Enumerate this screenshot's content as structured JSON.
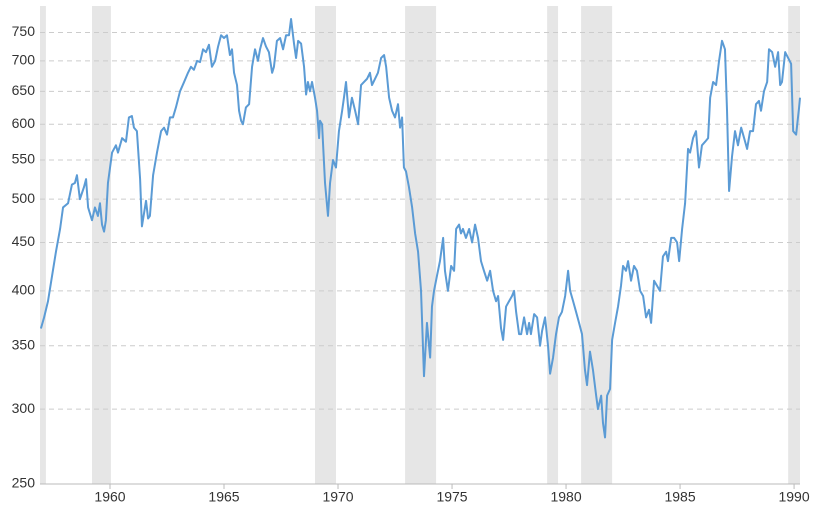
{
  "chart_data": {
    "type": "line",
    "x": [
      1956.97,
      1957.11,
      1957.28,
      1957.46,
      1957.63,
      1957.81,
      1957.94,
      1958.16,
      1958.33,
      1958.46,
      1958.55,
      1958.68,
      1958.86,
      1958.95,
      1959.04,
      1959.21,
      1959.34,
      1959.47,
      1959.56,
      1959.65,
      1959.74,
      1959.82,
      1959.91,
      1960.09,
      1960.26,
      1960.35,
      1960.53,
      1960.7,
      1960.83,
      1960.96,
      1961.05,
      1961.18,
      1961.32,
      1961.4,
      1961.58,
      1961.67,
      1961.75,
      1961.89,
      1962.06,
      1962.24,
      1962.37,
      1962.5,
      1962.63,
      1962.76,
      1962.89,
      1963.07,
      1963.25,
      1963.42,
      1963.55,
      1963.68,
      1963.82,
      1963.95,
      1964.08,
      1964.21,
      1964.34,
      1964.47,
      1964.61,
      1964.74,
      1964.87,
      1965.0,
      1965.13,
      1965.26,
      1965.35,
      1965.44,
      1965.57,
      1965.66,
      1965.75,
      1965.83,
      1965.96,
      1966.1,
      1966.23,
      1966.36,
      1966.49,
      1966.58,
      1966.71,
      1966.84,
      1966.97,
      1967.11,
      1967.19,
      1967.32,
      1967.46,
      1967.59,
      1967.72,
      1967.85,
      1967.94,
      1968.07,
      1968.16,
      1968.25,
      1968.38,
      1968.51,
      1968.6,
      1968.68,
      1968.77,
      1968.86,
      1968.99,
      1969.08,
      1969.17,
      1969.21,
      1969.3,
      1969.43,
      1969.56,
      1969.65,
      1969.78,
      1969.91,
      1970.04,
      1970.18,
      1970.26,
      1970.35,
      1970.48,
      1970.61,
      1970.75,
      1970.88,
      1971.01,
      1971.14,
      1971.27,
      1971.4,
      1971.49,
      1971.62,
      1971.75,
      1971.89,
      1972.02,
      1972.11,
      1972.24,
      1972.37,
      1972.5,
      1972.63,
      1972.72,
      1972.81,
      1972.89,
      1972.98,
      1973.11,
      1973.25,
      1973.38,
      1973.51,
      1973.64,
      1973.77,
      1973.9,
      1974.04,
      1974.12,
      1974.21,
      1974.34,
      1974.47,
      1974.61,
      1974.69,
      1974.82,
      1974.96,
      1975.09,
      1975.18,
      1975.31,
      1975.39,
      1975.48,
      1975.61,
      1975.75,
      1975.88,
      1976.01,
      1976.14,
      1976.27,
      1976.4,
      1976.54,
      1976.67,
      1976.8,
      1976.93,
      1977.02,
      1977.15,
      1977.24,
      1977.37,
      1977.5,
      1977.63,
      1977.72,
      1977.81,
      1977.94,
      1978.03,
      1978.16,
      1978.29,
      1978.38,
      1978.46,
      1978.6,
      1978.73,
      1978.86,
      1978.95,
      1979.08,
      1979.21,
      1979.3,
      1979.43,
      1979.56,
      1979.69,
      1979.82,
      1979.96,
      1980.09,
      1980.18,
      1980.31,
      1980.44,
      1980.57,
      1980.7,
      1980.83,
      1980.92,
      1981.05,
      1981.18,
      1981.32,
      1981.4,
      1981.54,
      1981.62,
      1981.71,
      1981.8,
      1981.93,
      1982.02,
      1982.15,
      1982.28,
      1982.41,
      1982.5,
      1982.63,
      1982.72,
      1982.85,
      1982.98,
      1983.11,
      1983.25,
      1983.38,
      1983.51,
      1983.64,
      1983.73,
      1983.86,
      1983.99,
      1984.12,
      1984.25,
      1984.39,
      1984.47,
      1984.61,
      1984.74,
      1984.87,
      1984.96,
      1985.09,
      1985.22,
      1985.35,
      1985.44,
      1985.57,
      1985.7,
      1985.83,
      1985.96,
      1986.1,
      1986.23,
      1986.32,
      1986.45,
      1986.58,
      1986.71,
      1986.84,
      1986.97,
      1987.06,
      1987.15,
      1987.28,
      1987.41,
      1987.54,
      1987.68,
      1987.81,
      1987.94,
      1988.07,
      1988.2,
      1988.33,
      1988.46,
      1988.55,
      1988.68,
      1988.82,
      1988.9,
      1989.04,
      1989.17,
      1989.3,
      1989.39,
      1989.47,
      1989.61,
      1989.74,
      1989.87,
      1989.96,
      1990.09,
      1990.22,
      1990.26
    ],
    "series": [
      {
        "color": "#5b9bd5",
        "values": [
          365,
          375,
          390,
          415,
          440,
          465,
          490,
          495,
          518,
          520,
          530,
          500,
          515,
          525,
          490,
          475,
          490,
          480,
          495,
          470,
          462,
          475,
          520,
          560,
          570,
          560,
          580,
          575,
          610,
          612,
          595,
          590,
          525,
          468,
          498,
          477,
          480,
          530,
          560,
          590,
          595,
          585,
          610,
          610,
          625,
          650,
          665,
          680,
          690,
          685,
          700,
          698,
          720,
          715,
          728,
          690,
          700,
          725,
          745,
          740,
          745,
          710,
          720,
          680,
          660,
          620,
          605,
          600,
          625,
          630,
          690,
          720,
          700,
          720,
          740,
          725,
          715,
          680,
          690,
          735,
          740,
          720,
          745,
          745,
          775,
          730,
          705,
          735,
          730,
          690,
          645,
          665,
          650,
          665,
          640,
          620,
          580,
          605,
          600,
          520,
          480,
          520,
          550,
          540,
          590,
          620,
          640,
          665,
          610,
          640,
          620,
          600,
          660,
          665,
          670,
          680,
          660,
          670,
          680,
          705,
          710,
          690,
          640,
          620,
          610,
          630,
          595,
          610,
          540,
          535,
          515,
          490,
          460,
          440,
          400,
          325,
          370,
          340,
          385,
          400,
          415,
          430,
          455,
          420,
          400,
          425,
          420,
          465,
          470,
          460,
          465,
          455,
          465,
          450,
          470,
          455,
          430,
          420,
          410,
          420,
          400,
          390,
          395,
          365,
          355,
          385,
          390,
          395,
          400,
          380,
          360,
          360,
          375,
          360,
          370,
          360,
          378,
          375,
          350,
          363,
          375,
          350,
          327,
          340,
          360,
          375,
          380,
          395,
          420,
          400,
          390,
          380,
          370,
          360,
          330,
          318,
          345,
          330,
          310,
          300,
          310,
          290,
          280,
          310,
          315,
          355,
          370,
          385,
          405,
          425,
          420,
          430,
          410,
          425,
          420,
          400,
          395,
          375,
          382,
          370,
          410,
          405,
          400,
          435,
          440,
          430,
          455,
          455,
          450,
          430,
          465,
          495,
          565,
          560,
          580,
          590,
          540,
          570,
          575,
          580,
          640,
          665,
          660,
          700,
          735,
          720,
          620,
          510,
          555,
          590,
          570,
          595,
          580,
          565,
          590,
          590,
          630,
          635,
          620,
          650,
          665,
          720,
          715,
          690,
          715,
          660,
          665,
          715,
          705,
          695,
          590,
          585,
          625,
          640
        ]
      }
    ],
    "recessions": [
      [
        1956.93,
        1957.19
      ],
      [
        1959.21,
        1960.04
      ],
      [
        1968.99,
        1969.91
      ],
      [
        1972.94,
        1974.3
      ],
      [
        1979.17,
        1979.65
      ],
      [
        1980.66,
        1982.02
      ],
      [
        1989.74,
        1990.26
      ]
    ],
    "recession_color": "#e6e6e6",
    "xlim": [
      1956.93,
      1990.26
    ],
    "xticks": [
      1960,
      1965,
      1970,
      1975,
      1980,
      1985,
      1990
    ],
    "ylim": [
      250,
      800
    ],
    "yticks": [
      250,
      300,
      350,
      400,
      450,
      500,
      550,
      600,
      650,
      700,
      750
    ],
    "log_scale": true,
    "grid": true
  }
}
